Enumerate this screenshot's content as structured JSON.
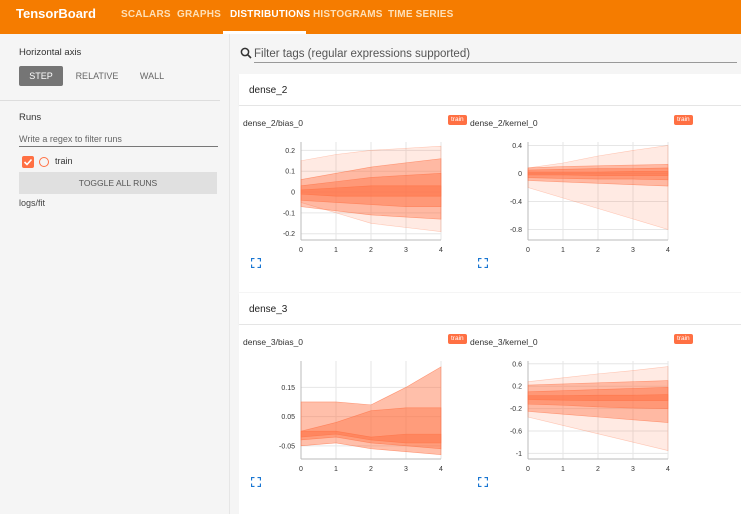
{
  "app": {
    "brand": "TensorBoard",
    "tabs": [
      "SCALARS",
      "GRAPHS",
      "DISTRIBUTIONS",
      "HISTOGRAMS",
      "TIME SERIES"
    ],
    "active_tab": "DISTRIBUTIONS"
  },
  "sidebar": {
    "horizontal_axis_label": "Horizontal axis",
    "axis_options": [
      "STEP",
      "RELATIVE",
      "WALL"
    ],
    "axis_selected": "STEP",
    "runs_label": "Runs",
    "regex_placeholder": "Write a regex to filter runs",
    "run_name": "train",
    "run_color": "#ff7043",
    "toggle_all": "TOGGLE ALL RUNS",
    "logdir": "logs/fit"
  },
  "main": {
    "filter_placeholder": "Filter tags (regular expressions supported)",
    "groups": [
      {
        "name": "dense_2",
        "cards": [
          {
            "title": "dense_2/bias_0",
            "badge": "train",
            "chart_data": {
              "type": "area",
              "x": [
                0,
                1,
                2,
                3,
                4
              ],
              "xticks": [
                "0",
                "1",
                "2",
                "3",
                "4"
              ],
              "ylim": [
                -0.23,
                0.24
              ],
              "yticks": [
                0.2,
                0.1,
                0,
                -0.1,
                -0.2
              ],
              "ytick_labels": [
                "0.2",
                "0.1",
                "0",
                "-0.1",
                "-0.2"
              ],
              "bands": [
                {
                  "lower": [
                    -0.05,
                    -0.1,
                    -0.15,
                    -0.17,
                    -0.19
                  ],
                  "upper": [
                    0.15,
                    0.18,
                    0.2,
                    0.21,
                    0.22
                  ],
                  "opacity": 0.15
                },
                {
                  "lower": [
                    -0.07,
                    -0.09,
                    -0.11,
                    -0.12,
                    -0.13
                  ],
                  "upper": [
                    0.06,
                    0.09,
                    0.12,
                    0.14,
                    0.16
                  ],
                  "opacity": 0.4
                },
                {
                  "lower": [
                    -0.04,
                    -0.05,
                    -0.06,
                    -0.07,
                    -0.07
                  ],
                  "upper": [
                    0.03,
                    0.05,
                    0.07,
                    0.08,
                    0.09
                  ],
                  "opacity": 0.45
                },
                {
                  "lower": [
                    -0.01,
                    -0.02,
                    -0.02,
                    -0.02,
                    -0.02
                  ],
                  "upper": [
                    0.01,
                    0.02,
                    0.03,
                    0.03,
                    0.03
                  ],
                  "opacity": 0.5
                }
              ]
            }
          },
          {
            "title": "dense_2/kernel_0",
            "badge": "train",
            "chart_data": {
              "type": "area",
              "x": [
                0,
                1,
                2,
                3,
                4
              ],
              "xticks": [
                "0",
                "1",
                "2",
                "3",
                "4"
              ],
              "ylim": [
                -0.95,
                0.45
              ],
              "yticks": [
                0.4,
                0,
                -0.4,
                -0.8
              ],
              "ytick_labels": [
                "0.4",
                "0",
                "-0.4",
                "-0.8"
              ],
              "bands": [
                {
                  "lower": [
                    -0.2,
                    -0.35,
                    -0.5,
                    -0.65,
                    -0.8
                  ],
                  "upper": [
                    0.08,
                    0.15,
                    0.25,
                    0.33,
                    0.4
                  ],
                  "opacity": 0.15
                },
                {
                  "lower": [
                    -0.1,
                    -0.12,
                    -0.14,
                    -0.16,
                    -0.18
                  ],
                  "upper": [
                    0.08,
                    0.1,
                    0.11,
                    0.12,
                    0.13
                  ],
                  "opacity": 0.4
                },
                {
                  "lower": [
                    -0.06,
                    -0.07,
                    -0.08,
                    -0.08,
                    -0.09
                  ],
                  "upper": [
                    0.05,
                    0.06,
                    0.07,
                    0.07,
                    0.08
                  ],
                  "opacity": 0.45
                },
                {
                  "lower": [
                    -0.02,
                    -0.02,
                    -0.03,
                    -0.03,
                    -0.03
                  ],
                  "upper": [
                    0.02,
                    0.02,
                    0.02,
                    0.03,
                    0.03
                  ],
                  "opacity": 0.5
                }
              ]
            }
          }
        ]
      },
      {
        "name": "dense_3",
        "cards": [
          {
            "title": "dense_3/bias_0",
            "badge": "train",
            "chart_data": {
              "type": "area",
              "x": [
                0,
                1,
                2,
                3,
                4
              ],
              "xticks": [
                "0",
                "1",
                "2",
                "3",
                "4"
              ],
              "ylim": [
                -0.095,
                0.24
              ],
              "yticks": [
                0.15,
                0.05,
                -0.05
              ],
              "ytick_labels": [
                "0.15",
                "0.05",
                "-0.05"
              ],
              "bands": [
                {
                  "lower": [
                    -0.05,
                    -0.04,
                    -0.06,
                    -0.07,
                    -0.08
                  ],
                  "upper": [
                    0.1,
                    0.1,
                    0.09,
                    0.15,
                    0.22
                  ],
                  "opacity": 0.45
                },
                {
                  "lower": [
                    -0.03,
                    -0.02,
                    -0.04,
                    -0.05,
                    -0.06
                  ],
                  "upper": [
                    0.0,
                    0.03,
                    0.07,
                    0.08,
                    0.08
                  ],
                  "opacity": 0.45
                },
                {
                  "lower": [
                    -0.02,
                    -0.01,
                    -0.03,
                    -0.04,
                    -0.04
                  ],
                  "upper": [
                    0.0,
                    0.0,
                    -0.02,
                    -0.01,
                    -0.01
                  ],
                  "opacity": 0.5
                }
              ]
            }
          },
          {
            "title": "dense_3/kernel_0",
            "badge": "train",
            "chart_data": {
              "type": "area",
              "x": [
                0,
                1,
                2,
                3,
                4
              ],
              "xticks": [
                "0",
                "1",
                "2",
                "3",
                "4"
              ],
              "ylim": [
                -1.1,
                0.65
              ],
              "yticks": [
                0.6,
                0.2,
                -0.2,
                -0.6,
                -1
              ],
              "ytick_labels": [
                "0.6",
                "0.2",
                "-0.2",
                "-0.6",
                "-1"
              ],
              "bands": [
                {
                  "lower": [
                    -0.35,
                    -0.5,
                    -0.65,
                    -0.8,
                    -0.95
                  ],
                  "upper": [
                    0.28,
                    0.35,
                    0.42,
                    0.48,
                    0.55
                  ],
                  "opacity": 0.15
                },
                {
                  "lower": [
                    -0.25,
                    -0.3,
                    -0.35,
                    -0.4,
                    -0.45
                  ],
                  "upper": [
                    0.22,
                    0.24,
                    0.26,
                    0.28,
                    0.3
                  ],
                  "opacity": 0.4
                },
                {
                  "lower": [
                    -0.12,
                    -0.14,
                    -0.17,
                    -0.19,
                    -0.2
                  ],
                  "upper": [
                    0.1,
                    0.12,
                    0.14,
                    0.16,
                    0.18
                  ],
                  "opacity": 0.45
                },
                {
                  "lower": [
                    -0.04,
                    -0.05,
                    -0.06,
                    -0.06,
                    -0.06
                  ],
                  "upper": [
                    0.03,
                    0.03,
                    0.04,
                    0.04,
                    0.05
                  ],
                  "opacity": 0.5
                }
              ]
            }
          }
        ]
      }
    ]
  }
}
